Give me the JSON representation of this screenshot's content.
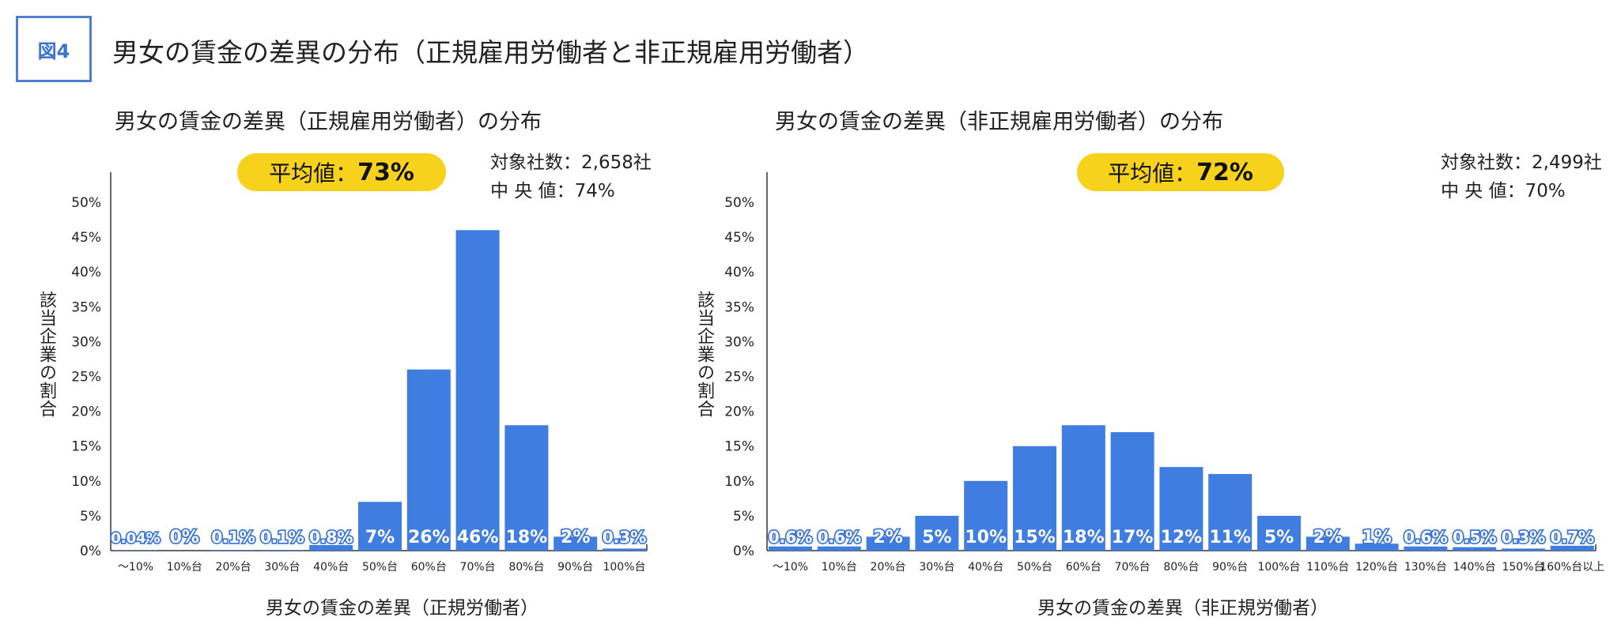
{
  "header": {
    "badge": "図4",
    "title": "男女の賃金の差異の分布（正規雇用労働者と非正規雇用労働者）"
  },
  "colors": {
    "bar": "#3f7de0",
    "accent": "#f7d21c",
    "badge_border": "#4a7fd4"
  },
  "panels": [
    {
      "title": "男女の賃金の差異（正規雇用労働者）の分布",
      "average_label": "平均値：",
      "average_value": "73%",
      "stats": {
        "count_label": "対象社数：",
        "count_value": "2,658社",
        "median_label": "中 央 値：",
        "median_value": "74%"
      },
      "ylabel": "該当企業の割合",
      "xlabel": "男女の賃金の差異（正規労働者）"
    },
    {
      "title": "男女の賃金の差異（非正規雇用労働者）の分布",
      "average_label": "平均値：",
      "average_value": "72%",
      "stats": {
        "count_label": "対象社数：",
        "count_value": "2,499社",
        "median_label": "中 央 値：",
        "median_value": "70%"
      },
      "ylabel": "該当企業の割合",
      "xlabel": "男女の賃金の差異（非正規労働者）"
    }
  ],
  "chart_data": [
    {
      "type": "bar",
      "title": "男女の賃金の差異（正規雇用労働者）の分布",
      "xlabel": "男女の賃金の差異（正規労働者）",
      "ylabel": "該当企業の割合",
      "ylim": [
        0,
        50
      ],
      "yticks": [
        "0%",
        "5%",
        "10%",
        "15%",
        "20%",
        "25%",
        "30%",
        "35%",
        "40%",
        "45%",
        "50%"
      ],
      "grid": false,
      "categories": [
        "〜10%",
        "10%台",
        "20%台",
        "30%台",
        "40%台",
        "50%台",
        "60%台",
        "70%台",
        "80%台",
        "90%台",
        "100%台"
      ],
      "values": [
        0.04,
        0,
        0.1,
        0.1,
        0.8,
        7,
        26,
        46,
        18,
        2,
        0.3
      ],
      "data_labels": [
        "0.04%",
        "0%",
        "0.1%",
        "0.1%",
        "0.8%",
        "7%",
        "26%",
        "46%",
        "18%",
        "2%",
        "0.3%"
      ]
    },
    {
      "type": "bar",
      "title": "男女の賃金の差異（非正規雇用労働者）の分布",
      "xlabel": "男女の賃金の差異（非正規労働者）",
      "ylabel": "該当企業の割合",
      "ylim": [
        0,
        50
      ],
      "yticks": [
        "0%",
        "5%",
        "10%",
        "15%",
        "20%",
        "25%",
        "30%",
        "35%",
        "40%",
        "45%",
        "50%"
      ],
      "grid": false,
      "categories": [
        "〜10%",
        "10%台",
        "20%台",
        "30%台",
        "40%台",
        "50%台",
        "60%台",
        "70%台",
        "80%台",
        "90%台",
        "100%台",
        "110%台",
        "120%台",
        "130%台",
        "140%台",
        "150%台",
        "160%台以上"
      ],
      "values": [
        0.6,
        0.6,
        2,
        5,
        10,
        15,
        18,
        17,
        12,
        11,
        5,
        2,
        1,
        0.6,
        0.5,
        0.3,
        0.7
      ],
      "data_labels": [
        "0.6%",
        "0.6%",
        "2%",
        "5%",
        "10%",
        "15%",
        "18%",
        "17%",
        "12%",
        "11%",
        "5%",
        "2%",
        "1%",
        "0.6%",
        "0.5%",
        "0.3%",
        "0.7%"
      ]
    }
  ]
}
